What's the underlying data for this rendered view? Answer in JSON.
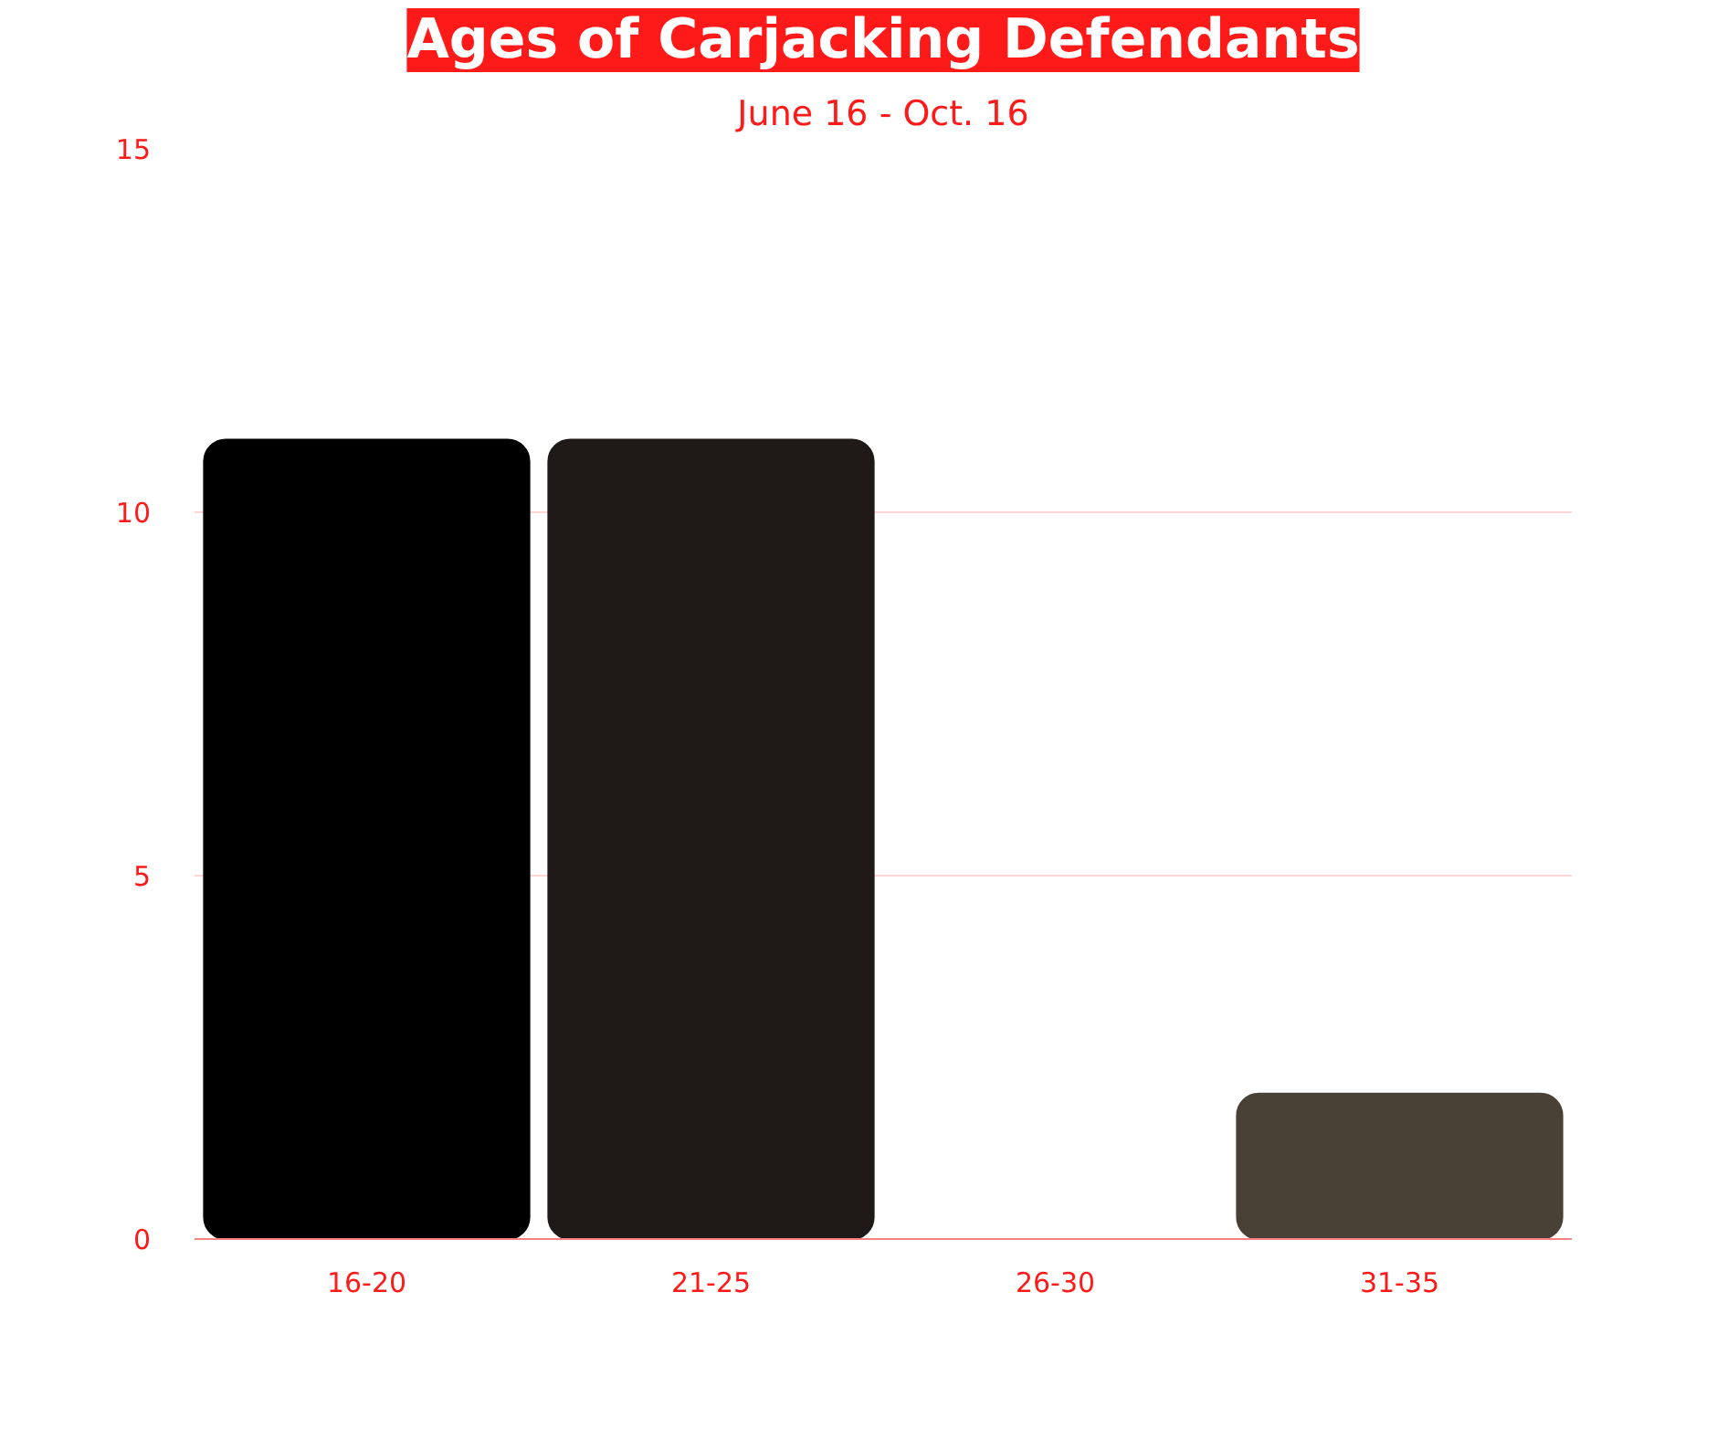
{
  "chart_data": {
    "type": "bar",
    "title": "Ages of Carjacking Defendants",
    "subtitle": "June 16 - Oct. 16",
    "categories": [
      "16-20",
      "21-25",
      "26-30",
      "31-35"
    ],
    "values": [
      11,
      11,
      0,
      2
    ],
    "colors": [
      "#000000",
      "#1f1a18",
      "#34302c",
      "#4a4136"
    ],
    "ylim": [
      0,
      15
    ],
    "yticks": [
      0,
      5,
      10,
      15
    ],
    "grid": "y"
  }
}
